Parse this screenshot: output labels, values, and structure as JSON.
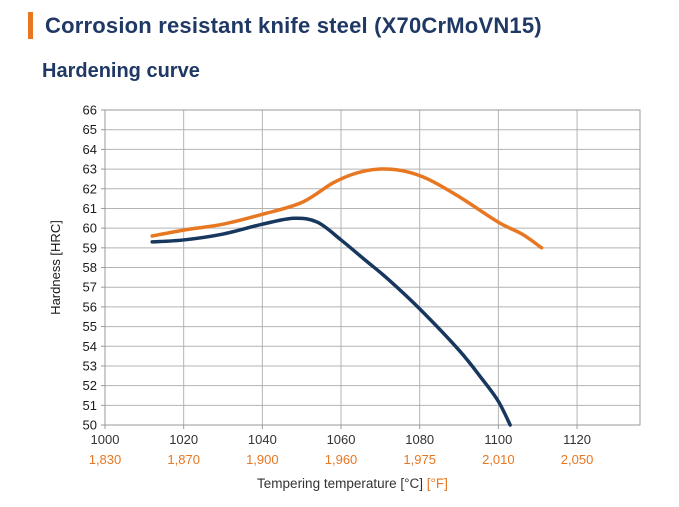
{
  "page": {
    "title": "Corrosion resistant knife steel (X70CrMoVN15)",
    "subtitle": "Hardening curve"
  },
  "colors": {
    "accent_orange": "#E87722",
    "title_blue": "#1F3864",
    "navy_series": "#17375E",
    "grid": "#b3b3b3",
    "axis": "#9a9a9a",
    "tick_text": "#1a1a1a"
  },
  "chart_data": {
    "type": "line",
    "title": "Hardening curve",
    "ylabel": "Hardness [HRC]",
    "xlabel_primary": "Tempering temperature [°C]",
    "xlabel_secondary": "[°F]",
    "xlim": [
      1000,
      1136
    ],
    "ylim": [
      50,
      66
    ],
    "grid": true,
    "legend": "none",
    "y_ticks": [
      50,
      51,
      52,
      53,
      54,
      55,
      56,
      57,
      58,
      59,
      60,
      61,
      62,
      63,
      64,
      65,
      66
    ],
    "x_ticks": [
      {
        "c": "1000",
        "f": "1,830"
      },
      {
        "c": "1020",
        "f": "1,870"
      },
      {
        "c": "1040",
        "f": "1,900"
      },
      {
        "c": "1060",
        "f": "1,960"
      },
      {
        "c": "1080",
        "f": "1,975"
      },
      {
        "c": "1100",
        "f": "2,010"
      },
      {
        "c": "1120",
        "f": "2,050"
      }
    ],
    "series": [
      {
        "name": "hardness-navy",
        "color": "#17375E",
        "points": [
          [
            1012,
            59.3
          ],
          [
            1020,
            59.4
          ],
          [
            1030,
            59.7
          ],
          [
            1040,
            60.2
          ],
          [
            1048,
            60.5
          ],
          [
            1054,
            60.3
          ],
          [
            1060,
            59.4
          ],
          [
            1066,
            58.4
          ],
          [
            1072,
            57.4
          ],
          [
            1080,
            55.9
          ],
          [
            1090,
            53.8
          ],
          [
            1096,
            52.3
          ],
          [
            1100,
            51.2
          ],
          [
            1103,
            50.0
          ]
        ]
      },
      {
        "name": "hardness-orange",
        "color": "#E87722",
        "points": [
          [
            1012,
            59.6
          ],
          [
            1020,
            59.9
          ],
          [
            1030,
            60.2
          ],
          [
            1040,
            60.7
          ],
          [
            1050,
            61.3
          ],
          [
            1058,
            62.3
          ],
          [
            1064,
            62.8
          ],
          [
            1070,
            63.0
          ],
          [
            1076,
            62.9
          ],
          [
            1082,
            62.5
          ],
          [
            1090,
            61.6
          ],
          [
            1100,
            60.3
          ],
          [
            1106,
            59.7
          ],
          [
            1111,
            59.0
          ]
        ]
      }
    ]
  }
}
